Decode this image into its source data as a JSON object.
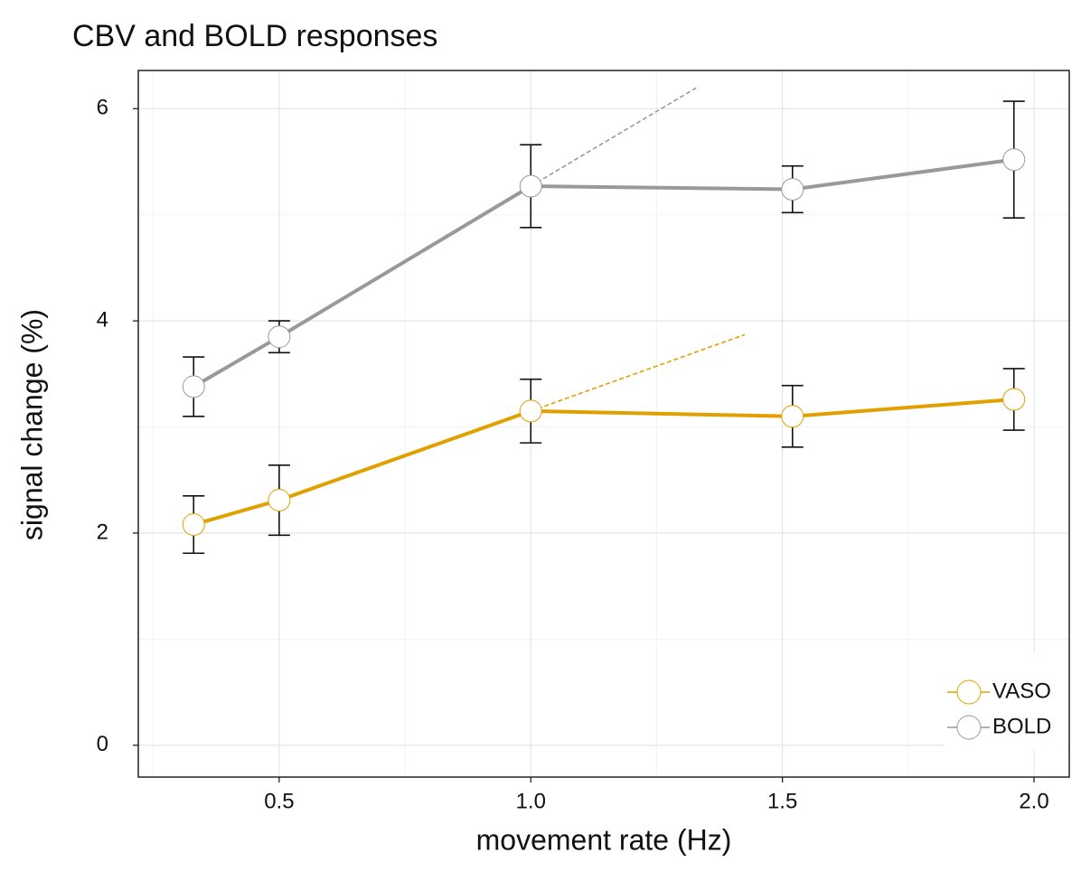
{
  "chart_data": {
    "type": "line",
    "title": "CBV and BOLD responses",
    "xlabel": "movement rate (Hz)",
    "ylabel": "signal change (%)",
    "xlim": [
      0.22,
      2.07
    ],
    "ylim": [
      -0.3,
      6.36
    ],
    "xticks": [
      0.5,
      {
        "value": 1.0,
        "label": "1.0"
      },
      1.5,
      {
        "value": 2.0,
        "label": "2.0"
      }
    ],
    "yticks": [
      0,
      2,
      4,
      6
    ],
    "xminor": [
      0.25,
      0.75,
      1.25,
      1.75
    ],
    "yminor": [
      1,
      3,
      5
    ],
    "grid": true,
    "legend": "lower right",
    "series": [
      {
        "name": "VASO",
        "color": "#e0a000",
        "x": [
          0.33,
          0.5,
          1.0,
          1.52,
          1.96
        ],
        "values": [
          2.08,
          2.31,
          3.15,
          3.1,
          3.26
        ],
        "errors": [
          0.27,
          0.33,
          0.3,
          0.29,
          0.29
        ],
        "trend": {
          "x": [
            1.0,
            1.425
          ],
          "values": [
            3.15,
            3.87
          ]
        }
      },
      {
        "name": "BOLD",
        "color": "#999999",
        "x": [
          0.33,
          0.5,
          1.0,
          1.52,
          1.96
        ],
        "values": [
          3.38,
          3.85,
          5.27,
          5.24,
          5.52
        ],
        "errors": [
          0.28,
          0.15,
          0.39,
          0.22,
          0.55
        ],
        "trend": {
          "x": [
            1.0,
            1.33
          ],
          "values": [
            5.27,
            6.2
          ]
        }
      }
    ]
  }
}
